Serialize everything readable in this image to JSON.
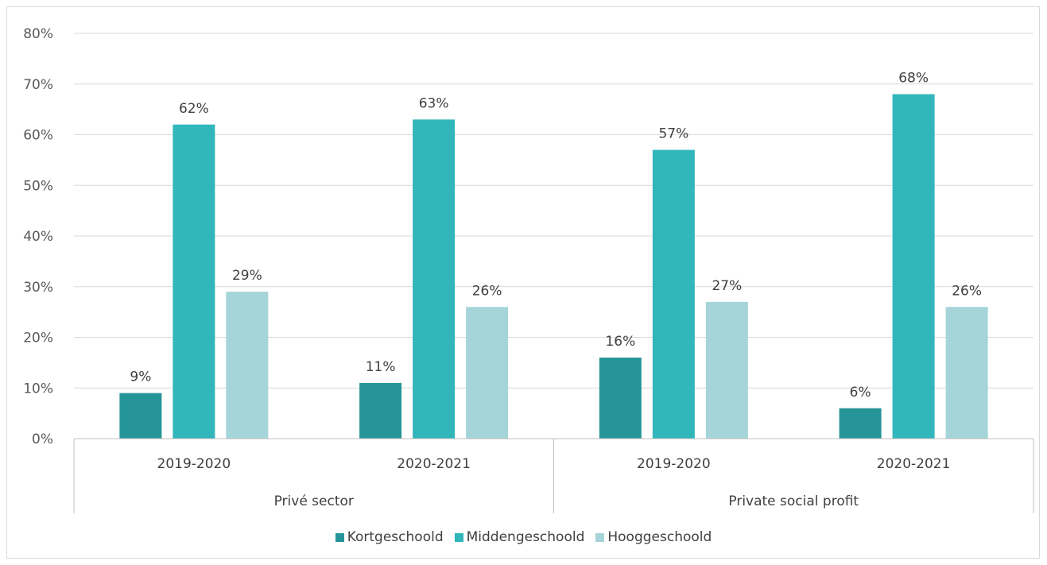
{
  "chart_data": {
    "type": "bar",
    "groups": [
      {
        "label": "Privé sector",
        "categories": [
          "2019-2020",
          "2020-2021"
        ]
      },
      {
        "label": "Private social profit",
        "categories": [
          "2019-2020",
          "2020-2021"
        ]
      }
    ],
    "categories": [
      "2019-2020",
      "2020-2021",
      "2019-2020",
      "2020-2021"
    ],
    "series": [
      {
        "name": "Kortgeschoold",
        "color": "#269599",
        "values": [
          9,
          11,
          16,
          6
        ]
      },
      {
        "name": "Middengeschoold",
        "color": "#31b6bb",
        "values": [
          62,
          63,
          57,
          68
        ]
      },
      {
        "name": "Hooggeschoold",
        "color": "#a5d5d8",
        "values": [
          29,
          26,
          27,
          26
        ]
      }
    ],
    "value_suffix": "%",
    "ylim": [
      0,
      80
    ],
    "yticks": [
      "0%",
      "10%",
      "20%",
      "30%",
      "40%",
      "50%",
      "60%",
      "70%",
      "80%"
    ],
    "grid": true,
    "legend_position": "bottom"
  }
}
